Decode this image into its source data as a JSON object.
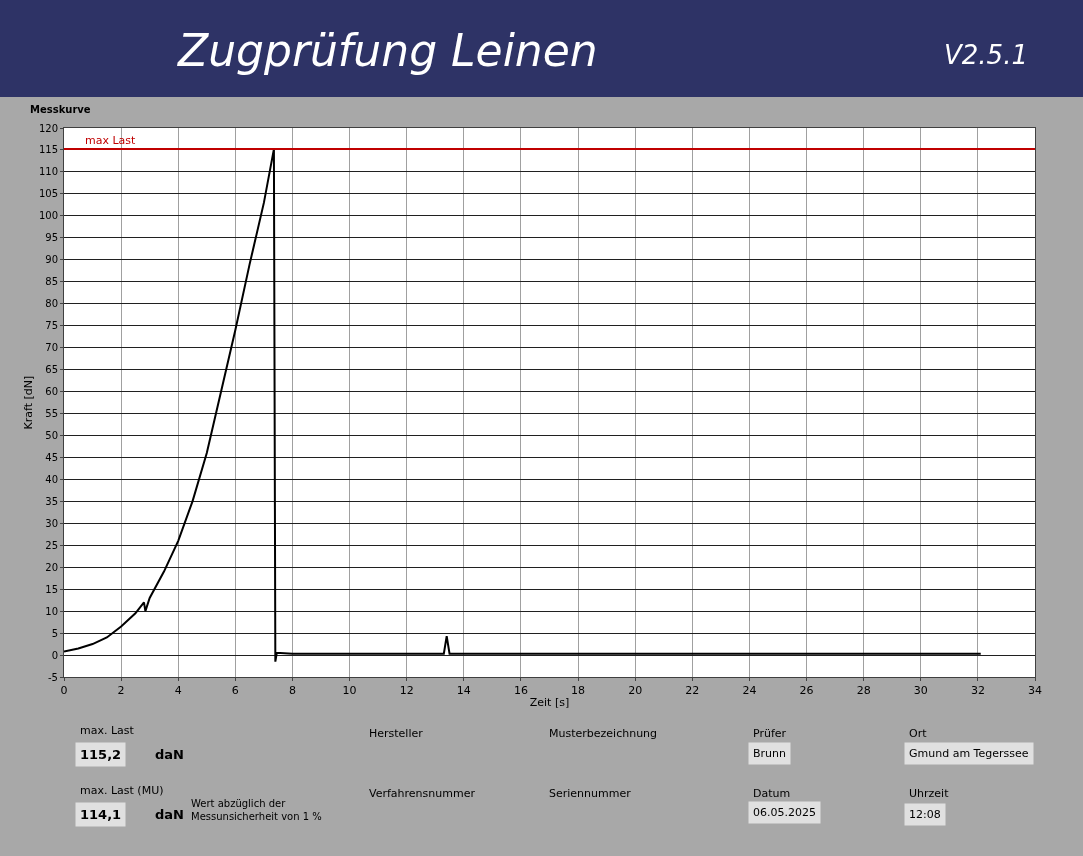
{
  "chart_data": {
    "type": "line",
    "title": "Zugprüfung Leinen",
    "subtitle": "V2.5.1",
    "xlabel": "Zeit [s]",
    "ylabel": "Kraft [dN]",
    "x": [
      0,
      0.5,
      1,
      1.5,
      2,
      2.5,
      2.8,
      2.85,
      3,
      3.5,
      4,
      4.5,
      5,
      5.5,
      6,
      6.5,
      7,
      7.35,
      7.4,
      7.45,
      8,
      10,
      12,
      13.3,
      13.4,
      13.5,
      15,
      18,
      20,
      22,
      24,
      26,
      28,
      30,
      32.1
    ],
    "series": [
      {
        "color": "#000000",
        "values": [
          0.8,
          1.5,
          2.5,
          4,
          6.5,
          9.5,
          12,
          10,
          13,
          19,
          26,
          35,
          46,
          60,
          74,
          89,
          103,
          115.2,
          -1.5,
          0.5,
          0.3,
          0.3,
          0.3,
          0.3,
          4.3,
          0.3,
          0.3,
          0.3,
          0.3,
          0.3,
          0.3,
          0.3,
          0.3,
          0.3,
          0.3
        ]
      }
    ],
    "xlim": [
      0,
      34
    ],
    "xticks": [
      0,
      2,
      4,
      6,
      8,
      10,
      12,
      14,
      16,
      18,
      20,
      22,
      24,
      26,
      28,
      30,
      32,
      34
    ],
    "ylim": [
      -5,
      120
    ],
    "yticks": [
      -5,
      0,
      5,
      10,
      15,
      20,
      25,
      30,
      35,
      40,
      45,
      50,
      55,
      60,
      65,
      70,
      75,
      80,
      85,
      90,
      95,
      100,
      105,
      110,
      115,
      120
    ],
    "ref_lines": [
      {
        "axis": "y",
        "value": 115.2,
        "label": "max Last",
        "color": "#c00000"
      }
    ],
    "grid": true,
    "marker": "none",
    "line_style": "solid",
    "annotations": [
      "Messkurve",
      "max. Last",
      "115,2",
      "daN",
      "max. Last (MU)",
      "114,1",
      "daN",
      "Wert abzüglich der\nMessunsicherheit von 1 %",
      "Hersteller",
      "Musterbezeichnung",
      "Prüfer",
      "Brunn",
      "Ort",
      "Gmund am Tegerssee",
      "Verfahrensnummer",
      "Seriennummer",
      "Datum",
      "06.05.2025",
      "Uhrzeit",
      "12:08"
    ]
  }
}
